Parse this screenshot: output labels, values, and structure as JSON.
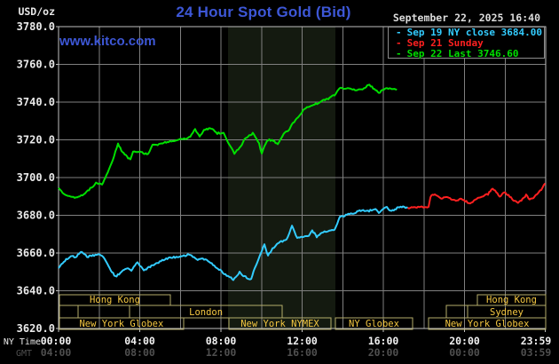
{
  "header": {
    "unit_label": "USD/oz",
    "title": "24 Hour Spot Gold (Bid)",
    "datetime": "September 22, 2025 16:40",
    "watermark": "www.kitco.com",
    "legend": [
      {
        "label": "Sep 19 NY close 3684.00",
        "color": "#33ccff"
      },
      {
        "label": "Sep 21 Sunday",
        "color": "#ff2020"
      },
      {
        "label": "Sep 22 Last 3746.60",
        "color": "#00df00"
      }
    ]
  },
  "axes": {
    "x_row1_label": "NY Time",
    "x_row2_label": "GMT",
    "x_ticks": [
      {
        "h": 0,
        "ny": "00:00",
        "gmt": "04:00"
      },
      {
        "h": 4,
        "ny": "04:00",
        "gmt": "08:00"
      },
      {
        "h": 8,
        "ny": "08:00",
        "gmt": "12:00"
      },
      {
        "h": 12,
        "ny": "12:00",
        "gmt": "16:00"
      },
      {
        "h": 16,
        "ny": "16:00",
        "gmt": "20:00"
      },
      {
        "h": 20,
        "ny": "20:00",
        "gmt": "00:00"
      },
      {
        "h": 23.983,
        "ny": "23:59",
        "gmt": "03:59"
      }
    ],
    "y_ticks": [
      "3780.0",
      "3760.0",
      "3740.0",
      "3720.0",
      "3700.0",
      "3680.0",
      "3660.0",
      "3640.0",
      "3620.0"
    ],
    "minor_x_step_hours": 2
  },
  "chart_data": {
    "type": "line",
    "title": "24 Hour Spot Gold (Bid)",
    "x_unit": "hours, NY time",
    "xlim": [
      0,
      24
    ],
    "ylim": [
      3620,
      3780
    ],
    "grid": true,
    "shaded_band_hours": [
      8.35,
      13.64
    ],
    "series": [
      {
        "name": "Sep 22 Last 3746.60",
        "color": "#00df00",
        "points": [
          [
            0,
            3694.5
          ],
          [
            0.26,
            3691.5
          ],
          [
            0.6,
            3689.5
          ],
          [
            1.05,
            3689.8
          ],
          [
            1.5,
            3693.5
          ],
          [
            1.84,
            3697.0
          ],
          [
            2.14,
            3696.3
          ],
          [
            2.36,
            3701.0
          ],
          [
            2.67,
            3709.5
          ],
          [
            2.93,
            3718.0
          ],
          [
            3.15,
            3713.3
          ],
          [
            3.37,
            3711.0
          ],
          [
            3.54,
            3709.5
          ],
          [
            3.67,
            3714.0
          ],
          [
            4.0,
            3713.5
          ],
          [
            4.42,
            3712.4
          ],
          [
            4.63,
            3717.0
          ],
          [
            5.07,
            3718.0
          ],
          [
            5.42,
            3719.0
          ],
          [
            5.95,
            3720.0
          ],
          [
            6.43,
            3721.2
          ],
          [
            6.73,
            3725.4
          ],
          [
            6.95,
            3722.0
          ],
          [
            7.17,
            3725.0
          ],
          [
            7.47,
            3726.3
          ],
          [
            7.82,
            3723.5
          ],
          [
            8.13,
            3723.8
          ],
          [
            8.39,
            3717.6
          ],
          [
            8.66,
            3713.0
          ],
          [
            8.92,
            3715.7
          ],
          [
            9.22,
            3721.0
          ],
          [
            9.57,
            3723.5
          ],
          [
            9.88,
            3718.0
          ],
          [
            10.01,
            3712.5
          ],
          [
            10.14,
            3716.4
          ],
          [
            10.32,
            3720.0
          ],
          [
            10.58,
            3719.5
          ],
          [
            10.8,
            3717.6
          ],
          [
            11.1,
            3723.5
          ],
          [
            11.32,
            3725.0
          ],
          [
            11.67,
            3730.6
          ],
          [
            12.11,
            3736.2
          ],
          [
            12.5,
            3738.5
          ],
          [
            12.85,
            3739.5
          ],
          [
            13.07,
            3741.0
          ],
          [
            13.29,
            3741.6
          ],
          [
            13.6,
            3743.8
          ],
          [
            13.86,
            3747.6
          ],
          [
            14.25,
            3747.0
          ],
          [
            14.73,
            3746.3
          ],
          [
            15.04,
            3747.0
          ],
          [
            15.26,
            3749.4
          ],
          [
            15.56,
            3747.0
          ],
          [
            15.78,
            3745.0
          ],
          [
            16.13,
            3747.2
          ],
          [
            16.48,
            3746.9
          ],
          [
            16.67,
            3746.6
          ]
        ]
      },
      {
        "name": "Sep 19 NY close 3684.00",
        "color": "#33ccff",
        "points": [
          [
            0,
            3652.0
          ],
          [
            0.26,
            3655.5
          ],
          [
            0.61,
            3658.5
          ],
          [
            0.83,
            3657.8
          ],
          [
            1.14,
            3661.0
          ],
          [
            1.4,
            3658.0
          ],
          [
            1.75,
            3658.8
          ],
          [
            2.01,
            3659.5
          ],
          [
            2.27,
            3657.0
          ],
          [
            2.58,
            3651.0
          ],
          [
            2.8,
            3647.5
          ],
          [
            3.1,
            3649.8
          ],
          [
            3.37,
            3652.2
          ],
          [
            3.59,
            3650.5
          ],
          [
            3.89,
            3655.3
          ],
          [
            4.2,
            3650.6
          ],
          [
            4.46,
            3652.5
          ],
          [
            4.68,
            3653.8
          ],
          [
            5.11,
            3656.1
          ],
          [
            5.55,
            3657.7
          ],
          [
            5.99,
            3658.0
          ],
          [
            6.43,
            3659.2
          ],
          [
            6.86,
            3656.6
          ],
          [
            7.04,
            3657.5
          ],
          [
            7.3,
            3656.0
          ],
          [
            7.61,
            3653.8
          ],
          [
            7.91,
            3651.4
          ],
          [
            8.17,
            3649.0
          ],
          [
            8.39,
            3647.5
          ],
          [
            8.61,
            3645.9
          ],
          [
            8.92,
            3649.8
          ],
          [
            9.05,
            3648.3
          ],
          [
            9.27,
            3647.0
          ],
          [
            9.49,
            3645.9
          ],
          [
            9.66,
            3652.2
          ],
          [
            9.79,
            3655.3
          ],
          [
            10.01,
            3660.8
          ],
          [
            10.14,
            3664.7
          ],
          [
            10.32,
            3658.6
          ],
          [
            10.54,
            3662.4
          ],
          [
            10.75,
            3664.7
          ],
          [
            10.97,
            3666.1
          ],
          [
            11.23,
            3667.0
          ],
          [
            11.5,
            3674.6
          ],
          [
            11.76,
            3667.9
          ],
          [
            12.07,
            3668.5
          ],
          [
            12.33,
            3668.9
          ],
          [
            12.5,
            3671.8
          ],
          [
            12.72,
            3668.7
          ],
          [
            12.98,
            3671.0
          ],
          [
            13.29,
            3671.8
          ],
          [
            13.6,
            3672.6
          ],
          [
            13.86,
            3679.0
          ],
          [
            14.21,
            3680.3
          ],
          [
            14.6,
            3681.3
          ],
          [
            14.95,
            3682.8
          ],
          [
            15.3,
            3682.3
          ],
          [
            15.61,
            3683.6
          ],
          [
            15.78,
            3681.3
          ],
          [
            16.04,
            3684.1
          ],
          [
            16.17,
            3684.7
          ],
          [
            16.35,
            3682.2
          ],
          [
            16.57,
            3683.2
          ],
          [
            16.79,
            3684.5
          ],
          [
            17.09,
            3684.2
          ],
          [
            17.2,
            3684.0
          ]
        ]
      },
      {
        "name": "Sep 21 Sunday",
        "color": "#ff2020",
        "points": [
          [
            17.2,
            3684.0
          ],
          [
            18.23,
            3684.5
          ],
          [
            18.32,
            3689.9
          ],
          [
            18.54,
            3691.3
          ],
          [
            18.85,
            3688.9
          ],
          [
            19.1,
            3689.9
          ],
          [
            19.41,
            3688.2
          ],
          [
            19.63,
            3687.5
          ],
          [
            19.85,
            3688.9
          ],
          [
            20.15,
            3686.8
          ],
          [
            20.28,
            3686.1
          ],
          [
            20.59,
            3688.9
          ],
          [
            20.85,
            3689.9
          ],
          [
            21.16,
            3691.3
          ],
          [
            21.38,
            3694.4
          ],
          [
            21.51,
            3692.8
          ],
          [
            21.73,
            3689.9
          ],
          [
            21.95,
            3692.1
          ],
          [
            22.17,
            3690.6
          ],
          [
            22.47,
            3687.5
          ],
          [
            22.69,
            3686.8
          ],
          [
            22.91,
            3688.9
          ],
          [
            23.04,
            3690.6
          ],
          [
            23.21,
            3688.2
          ],
          [
            23.34,
            3688.9
          ],
          [
            23.56,
            3691.3
          ],
          [
            23.78,
            3693.6
          ],
          [
            23.98,
            3696.9
          ]
        ]
      }
    ],
    "sessions": [
      {
        "row": 0,
        "label": "Hong Kong",
        "start": 0.04,
        "end": 5.51
      },
      {
        "row": 0,
        "label": "Hong Kong",
        "start": 20.63,
        "end": 24
      },
      {
        "row": 1,
        "label": "",
        "start": 0.04,
        "end": 0.96
      },
      {
        "row": 1,
        "label": "",
        "start": 0.96,
        "end": 3.5
      },
      {
        "row": 1,
        "label": "London",
        "start": 3.5,
        "end": 11.02
      },
      {
        "row": 1,
        "label": "",
        "start": 19.1,
        "end": 20.15
      },
      {
        "row": 1,
        "label": "Sydney",
        "start": 20.15,
        "end": 24
      },
      {
        "row": 2,
        "label": "New York Globex",
        "start": 0.04,
        "end": 6.16
      },
      {
        "row": 2,
        "label": "New York NYMEX",
        "start": 8.39,
        "end": 13.42
      },
      {
        "row": 2,
        "label": "NY Globex",
        "start": 13.64,
        "end": 17.44
      },
      {
        "row": 2,
        "label": "New York Globex",
        "start": 18.23,
        "end": 24
      }
    ]
  },
  "colors": {
    "background": "#000000",
    "grid": "#808080",
    "spine": "#c0c0c0",
    "band": "#141a10",
    "title_blue": "#3d57d6",
    "session_border": "#b5ad6a",
    "session_text": "#f5c842",
    "legend_border": "#8c8c8c"
  }
}
